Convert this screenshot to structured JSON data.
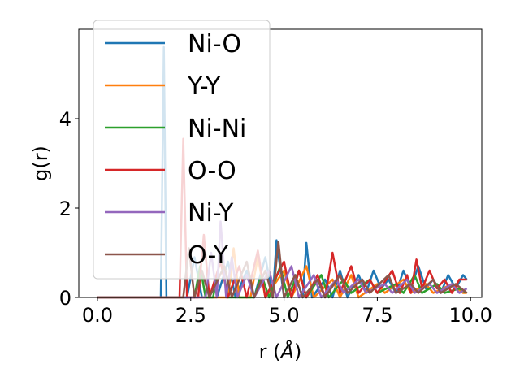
{
  "chart_data": {
    "type": "line",
    "xlabel_prefix": "r (",
    "xlabel_unit": "Å",
    "xlabel_suffix": ")",
    "ylabel": "g(r)",
    "xlim": [
      -0.5,
      10.3
    ],
    "ylim": [
      0,
      6.0
    ],
    "xticks": [
      0.0,
      2.5,
      5.0,
      7.5,
      10.0
    ],
    "xtick_labels": [
      "0.0",
      "2.5",
      "5.0",
      "7.5",
      "10.0"
    ],
    "yticks": [
      0,
      2,
      4
    ],
    "ytick_labels": [
      "0",
      "2",
      "4"
    ],
    "grid": false,
    "legend_position": "upper-left",
    "series": [
      {
        "name": "Ni-O",
        "color": "#1f77b4",
        "points": [
          [
            0.0,
            0
          ],
          [
            1.7,
            0
          ],
          [
            1.78,
            5.6
          ],
          [
            1.85,
            0
          ],
          [
            2.4,
            0
          ],
          [
            2.6,
            0.9
          ],
          [
            2.8,
            0
          ],
          [
            3.2,
            0
          ],
          [
            3.5,
            0.8
          ],
          [
            3.7,
            0
          ],
          [
            4.0,
            0.6
          ],
          [
            4.2,
            0
          ],
          [
            4.5,
            0.9
          ],
          [
            4.7,
            0
          ],
          [
            4.8,
            1.28
          ],
          [
            5.0,
            0
          ],
          [
            5.3,
            0.5
          ],
          [
            5.5,
            0
          ],
          [
            5.6,
            1.22
          ],
          [
            5.75,
            0
          ],
          [
            6.1,
            0.4
          ],
          [
            6.3,
            0
          ],
          [
            6.5,
            0.6
          ],
          [
            6.7,
            0
          ],
          [
            7.0,
            0.5
          ],
          [
            7.2,
            0.1
          ],
          [
            7.4,
            0.6
          ],
          [
            7.6,
            0.2
          ],
          [
            7.8,
            0.4
          ],
          [
            8.0,
            0.1
          ],
          [
            8.2,
            0.6
          ],
          [
            8.4,
            0.2
          ],
          [
            8.6,
            0.7
          ],
          [
            8.8,
            0.2
          ],
          [
            9.0,
            0.4
          ],
          [
            9.2,
            0.1
          ],
          [
            9.4,
            0.5
          ],
          [
            9.6,
            0.2
          ],
          [
            9.8,
            0.5
          ],
          [
            9.9,
            0.4
          ]
        ]
      },
      {
        "name": "Y-Y",
        "color": "#ff7f0e",
        "points": [
          [
            0.0,
            0
          ],
          [
            3.5,
            0
          ],
          [
            3.65,
            1.1
          ],
          [
            3.8,
            0
          ],
          [
            4.1,
            0
          ],
          [
            4.3,
            0.9
          ],
          [
            4.5,
            0
          ],
          [
            5.0,
            0.6
          ],
          [
            5.2,
            0
          ],
          [
            5.6,
            0.7
          ],
          [
            5.8,
            0
          ],
          [
            6.3,
            0.4
          ],
          [
            6.5,
            0
          ],
          [
            6.8,
            0.5
          ],
          [
            7.0,
            0
          ],
          [
            7.5,
            0.3
          ],
          [
            7.7,
            0.1
          ],
          [
            8.2,
            0.4
          ],
          [
            8.4,
            0.1
          ],
          [
            8.8,
            0.3
          ],
          [
            9.0,
            0.1
          ],
          [
            9.5,
            0.3
          ],
          [
            9.8,
            0.1
          ],
          [
            9.9,
            0.1
          ]
        ]
      },
      {
        "name": "Ni-Ni",
        "color": "#2ca02c",
        "points": [
          [
            0.0,
            0
          ],
          [
            2.6,
            0
          ],
          [
            2.75,
            0.7
          ],
          [
            2.9,
            0
          ],
          [
            3.1,
            0
          ],
          [
            3.3,
            0.9
          ],
          [
            3.5,
            0
          ],
          [
            4.2,
            0
          ],
          [
            4.4,
            0.5
          ],
          [
            4.6,
            0
          ],
          [
            4.9,
            0.7
          ],
          [
            5.1,
            0
          ],
          [
            5.4,
            0.6
          ],
          [
            5.6,
            0
          ],
          [
            6.0,
            0.5
          ],
          [
            6.2,
            0
          ],
          [
            6.6,
            0.4
          ],
          [
            6.8,
            0.1
          ],
          [
            7.3,
            0.4
          ],
          [
            7.5,
            0.1
          ],
          [
            8.0,
            0.3
          ],
          [
            8.2,
            0.1
          ],
          [
            8.5,
            0.5
          ],
          [
            8.7,
            0.1
          ],
          [
            9.1,
            0.3
          ],
          [
            9.3,
            0.1
          ],
          [
            9.7,
            0.2
          ],
          [
            9.9,
            0.1
          ]
        ]
      },
      {
        "name": "O-O",
        "color": "#d62728",
        "points": [
          [
            0.0,
            0
          ],
          [
            2.2,
            0
          ],
          [
            2.3,
            3.55
          ],
          [
            2.4,
            0
          ],
          [
            2.7,
            0
          ],
          [
            2.85,
            1.4
          ],
          [
            3.0,
            0
          ],
          [
            3.3,
            0.8
          ],
          [
            3.5,
            0
          ],
          [
            3.8,
            0.7
          ],
          [
            4.0,
            0
          ],
          [
            4.3,
            1.05
          ],
          [
            4.5,
            0
          ],
          [
            5.0,
            0.8
          ],
          [
            5.2,
            0
          ],
          [
            5.4,
            0.6
          ],
          [
            5.6,
            0
          ],
          [
            5.9,
            0.5
          ],
          [
            6.1,
            0
          ],
          [
            6.3,
            1.0
          ],
          [
            6.5,
            0.1
          ],
          [
            6.8,
            0.7
          ],
          [
            7.0,
            0.1
          ],
          [
            7.3,
            0.4
          ],
          [
            7.5,
            0.1
          ],
          [
            7.9,
            0.6
          ],
          [
            8.1,
            0.1
          ],
          [
            8.3,
            0.5
          ],
          [
            8.4,
            0.1
          ],
          [
            8.55,
            0.85
          ],
          [
            8.7,
            0.2
          ],
          [
            8.9,
            0.6
          ],
          [
            9.1,
            0.2
          ],
          [
            9.3,
            0.4
          ],
          [
            9.5,
            0.1
          ],
          [
            9.7,
            0.4
          ],
          [
            9.9,
            0.4
          ]
        ]
      },
      {
        "name": "Ni-Y",
        "color": "#9467bd",
        "points": [
          [
            0.0,
            0
          ],
          [
            2.9,
            0
          ],
          [
            3.05,
            1.0
          ],
          [
            3.2,
            0
          ],
          [
            3.3,
            1.7
          ],
          [
            3.45,
            0
          ],
          [
            3.6,
            0.9
          ],
          [
            3.75,
            0
          ],
          [
            4.0,
            0.5
          ],
          [
            4.2,
            0
          ],
          [
            4.6,
            0.6
          ],
          [
            4.8,
            0
          ],
          [
            5.2,
            0.7
          ],
          [
            5.4,
            0
          ],
          [
            5.8,
            0.5
          ],
          [
            6.0,
            0
          ],
          [
            6.4,
            0.4
          ],
          [
            6.6,
            0.1
          ],
          [
            7.0,
            0.4
          ],
          [
            7.2,
            0.1
          ],
          [
            7.7,
            0.3
          ],
          [
            7.9,
            0.1
          ],
          [
            8.3,
            0.4
          ],
          [
            8.5,
            0.1
          ],
          [
            8.9,
            0.3
          ],
          [
            9.1,
            0.1
          ],
          [
            9.5,
            0.3
          ],
          [
            9.7,
            0.1
          ],
          [
            9.9,
            0.2
          ]
        ]
      },
      {
        "name": "O-Y",
        "color": "#8c564b",
        "points": [
          [
            0.0,
            0
          ],
          [
            2.3,
            0
          ],
          [
            2.45,
            1.1
          ],
          [
            2.6,
            0
          ],
          [
            2.8,
            0.6
          ],
          [
            3.0,
            0
          ],
          [
            3.4,
            0.7
          ],
          [
            3.6,
            0
          ],
          [
            4.0,
            0.8
          ],
          [
            4.2,
            0
          ],
          [
            4.5,
            0.6
          ],
          [
            4.7,
            0
          ],
          [
            4.85,
            1.25
          ],
          [
            5.0,
            0
          ],
          [
            5.3,
            0.5
          ],
          [
            5.5,
            0
          ],
          [
            5.9,
            0.4
          ],
          [
            6.1,
            0
          ],
          [
            6.5,
            0.5
          ],
          [
            6.7,
            0.1
          ],
          [
            7.1,
            0.4
          ],
          [
            7.3,
            0.1
          ],
          [
            7.8,
            0.5
          ],
          [
            8.0,
            0.1
          ],
          [
            8.4,
            0.3
          ],
          [
            8.6,
            0.1
          ],
          [
            9.0,
            0.4
          ],
          [
            9.2,
            0.1
          ],
          [
            9.6,
            0.3
          ],
          [
            9.9,
            0.1
          ]
        ]
      }
    ]
  }
}
